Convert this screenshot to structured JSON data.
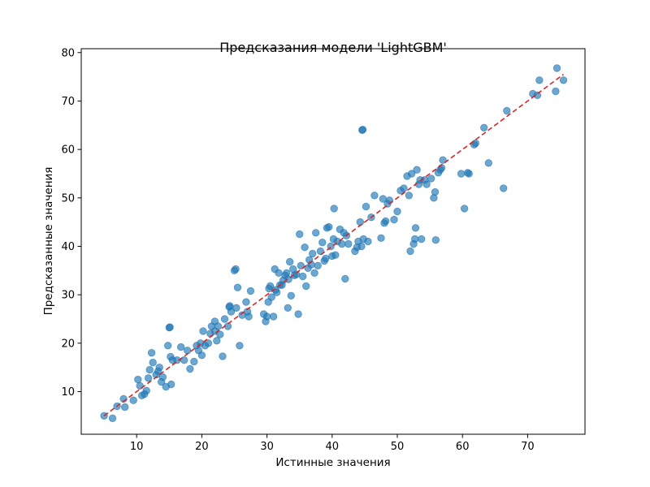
{
  "chart_data": {
    "type": "scatter",
    "title": "Предсказания модели 'LightGBM'",
    "xlabel": "Истинные значения",
    "ylabel": "Предсказанные значения",
    "xlim": [
      1.5,
      78.8
    ],
    "ylim": [
      1.2,
      80.8
    ],
    "xticks": [
      10,
      20,
      30,
      40,
      50,
      60,
      70
    ],
    "yticks": [
      10,
      20,
      30,
      40,
      50,
      60,
      70,
      80
    ],
    "grid": false,
    "point_color": "#1f77b4",
    "point_alpha": 0.65,
    "reference_line": {
      "x": [
        5,
        75.5
      ],
      "y": [
        5,
        75.5
      ],
      "color": "#d62728",
      "style": "dashed"
    },
    "points": [
      [
        5,
        5
      ],
      [
        6.3,
        4.5
      ],
      [
        7,
        7
      ],
      [
        8,
        8.5
      ],
      [
        8.2,
        6.8
      ],
      [
        9.5,
        8.2
      ],
      [
        10.2,
        12.5
      ],
      [
        10.5,
        11.2
      ],
      [
        10.8,
        9.2
      ],
      [
        11.2,
        9.5
      ],
      [
        11.5,
        10.2
      ],
      [
        11.8,
        12.8
      ],
      [
        12,
        14.5
      ],
      [
        12.3,
        18
      ],
      [
        12.5,
        16
      ],
      [
        13,
        13.5
      ],
      [
        13.3,
        14.2
      ],
      [
        13.5,
        15
      ],
      [
        13.8,
        12
      ],
      [
        14,
        13
      ],
      [
        14.5,
        11
      ],
      [
        14.8,
        19.5
      ],
      [
        15,
        23.2
      ],
      [
        15.1,
        23.3
      ],
      [
        15.2,
        17.2
      ],
      [
        15.5,
        16.5
      ],
      [
        15.3,
        11.5
      ],
      [
        16.2,
        16.5
      ],
      [
        16.8,
        19.2
      ],
      [
        17.3,
        16.5
      ],
      [
        17.8,
        18.5
      ],
      [
        18.2,
        14.7
      ],
      [
        18.8,
        16.2
      ],
      [
        19.2,
        19.5
      ],
      [
        19.5,
        18.5
      ],
      [
        19.8,
        20
      ],
      [
        20,
        17.5
      ],
      [
        20.2,
        22.5
      ],
      [
        20.5,
        19.5
      ],
      [
        21,
        20
      ],
      [
        21.3,
        22
      ],
      [
        21.5,
        23.5
      ],
      [
        22,
        22.5
      ],
      [
        22,
        24.5
      ],
      [
        22.5,
        23.5
      ],
      [
        22.3,
        20.5
      ],
      [
        22.8,
        21.8
      ],
      [
        23.2,
        17.3
      ],
      [
        23.5,
        25
      ],
      [
        24,
        23.5
      ],
      [
        24.2,
        27.5
      ],
      [
        24.3,
        27.7
      ],
      [
        24.5,
        26.5
      ],
      [
        25,
        35
      ],
      [
        25.2,
        35.3
      ],
      [
        25.3,
        27.3
      ],
      [
        25.5,
        31.5
      ],
      [
        25.8,
        19.5
      ],
      [
        26.2,
        25.8
      ],
      [
        26.8,
        28.5
      ],
      [
        27,
        26.5
      ],
      [
        27.5,
        30.8
      ],
      [
        27.2,
        25.5
      ],
      [
        29.5,
        26
      ],
      [
        29.8,
        24.5
      ],
      [
        30,
        25.5
      ],
      [
        30.2,
        28.5
      ],
      [
        30.3,
        31.3
      ],
      [
        30.5,
        31.8
      ],
      [
        30.7,
        29.5
      ],
      [
        31,
        25.5
      ],
      [
        31.2,
        35.3
      ],
      [
        31.3,
        31
      ],
      [
        31.5,
        30.5
      ],
      [
        31.8,
        34.5
      ],
      [
        32,
        32
      ],
      [
        32.3,
        32
      ],
      [
        32.5,
        33
      ],
      [
        32.8,
        34
      ],
      [
        33,
        34.5
      ],
      [
        33.2,
        27.3
      ],
      [
        33.3,
        33.2
      ],
      [
        33.5,
        36.8
      ],
      [
        33.7,
        29.8
      ],
      [
        34,
        35.3
      ],
      [
        34.2,
        34
      ],
      [
        34.5,
        34.2
      ],
      [
        34.8,
        26
      ],
      [
        35,
        42.5
      ],
      [
        35.2,
        36
      ],
      [
        35.5,
        33.8
      ],
      [
        35.8,
        39.8
      ],
      [
        36,
        31.8
      ],
      [
        36.3,
        35.5
      ],
      [
        36.5,
        37.2
      ],
      [
        36.8,
        36.2
      ],
      [
        37,
        38.5
      ],
      [
        37.3,
        34.5
      ],
      [
        37.5,
        42.8
      ],
      [
        37.8,
        36
      ],
      [
        38.2,
        39
      ],
      [
        38.5,
        40.8
      ],
      [
        38.8,
        37
      ],
      [
        39,
        37.5
      ],
      [
        39.2,
        43.8
      ],
      [
        39.5,
        44
      ],
      [
        39.8,
        40
      ],
      [
        40,
        38
      ],
      [
        40.2,
        41.5
      ],
      [
        40.3,
        47.8
      ],
      [
        40.5,
        38.2
      ],
      [
        40.8,
        41
      ],
      [
        41.2,
        43.5
      ],
      [
        41.5,
        40.5
      ],
      [
        41.8,
        42.8
      ],
      [
        42,
        33.3
      ],
      [
        42.2,
        42.2
      ],
      [
        42.5,
        40.5
      ],
      [
        43.5,
        39
      ],
      [
        43.8,
        39.8
      ],
      [
        44,
        41
      ],
      [
        44.3,
        45
      ],
      [
        44.5,
        40
      ],
      [
        44.6,
        64
      ],
      [
        44.7,
        64.1
      ],
      [
        44.8,
        41.5
      ],
      [
        45.2,
        48.2
      ],
      [
        45.5,
        41
      ],
      [
        46,
        46
      ],
      [
        46.5,
        50.5
      ],
      [
        47.5,
        41.7
      ],
      [
        47.8,
        49.8
      ],
      [
        48,
        44.8
      ],
      [
        48.2,
        45.2
      ],
      [
        48.5,
        48.8
      ],
      [
        48.8,
        49.5
      ],
      [
        49.5,
        45.5
      ],
      [
        50,
        47.2
      ],
      [
        50.5,
        51.5
      ],
      [
        51,
        52
      ],
      [
        51.5,
        54.5
      ],
      [
        51.8,
        50.5
      ],
      [
        52,
        39
      ],
      [
        52.2,
        55
      ],
      [
        52.5,
        40.5
      ],
      [
        52.7,
        41.5
      ],
      [
        52.8,
        43.8
      ],
      [
        53,
        55.8
      ],
      [
        53.3,
        52.8
      ],
      [
        53.5,
        53.7
      ],
      [
        53.7,
        41.5
      ],
      [
        54.2,
        53.7
      ],
      [
        54.5,
        52.8
      ],
      [
        55.2,
        54
      ],
      [
        55.6,
        50
      ],
      [
        55.8,
        51.2
      ],
      [
        55.9,
        41.3
      ],
      [
        56.3,
        55.2
      ],
      [
        56.6,
        55.8
      ],
      [
        56.8,
        56.2
      ],
      [
        57,
        57.8
      ],
      [
        59.8,
        55
      ],
      [
        60.3,
        47.8
      ],
      [
        60.8,
        55.2
      ],
      [
        61,
        55
      ],
      [
        61.8,
        61
      ],
      [
        62,
        61.3
      ],
      [
        63.3,
        64.5
      ],
      [
        64,
        57.2
      ],
      [
        66.3,
        52
      ],
      [
        66.8,
        68
      ],
      [
        70.8,
        71.5
      ],
      [
        71.5,
        71.2
      ],
      [
        71.8,
        74.3
      ],
      [
        74.3,
        72
      ],
      [
        74.5,
        76.8
      ],
      [
        75.5,
        74.3
      ]
    ]
  }
}
